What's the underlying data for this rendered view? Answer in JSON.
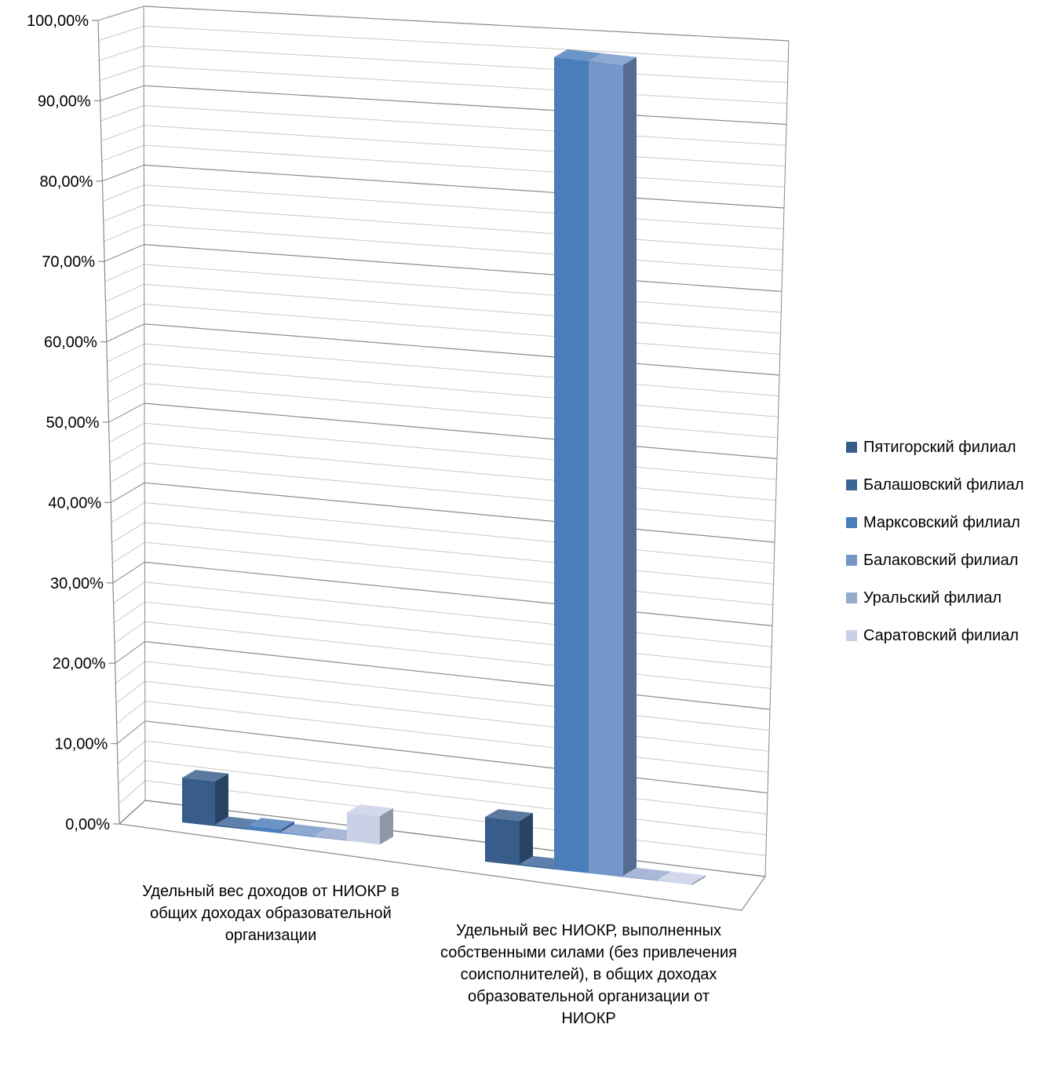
{
  "chart_data": {
    "type": "bar",
    "variant": "3d-clustered-column",
    "title": "",
    "xlabel": "",
    "ylabel": "",
    "ylim": [
      0,
      100
    ],
    "y_ticks": [
      "0,00%",
      "10,00%",
      "20,00%",
      "30,00%",
      "40,00%",
      "50,00%",
      "60,00%",
      "70,00%",
      "80,00%",
      "90,00%",
      "100,00%"
    ],
    "categories": [
      "Удельный вес доходов от НИОКР в общих доходах образовательной организации",
      "Удельный вес НИОКР, выполненных собственными силами (без привлечения соисполнителей), в общих доходах образовательной организации от НИОКР"
    ],
    "series": [
      {
        "name": "Пятигорский филиал",
        "color": "#385D8A",
        "values": [
          5.5,
          5.5
        ]
      },
      {
        "name": "Балашовский филиал",
        "color": "#3A6597",
        "values": [
          0.2,
          0.2
        ]
      },
      {
        "name": "Марксовский филиал",
        "color": "#4A7EBB",
        "values": [
          0.5,
          100
        ]
      },
      {
        "name": "Балаковский филиал",
        "color": "#7496C8",
        "values": [
          0.1,
          100
        ]
      },
      {
        "name": "Уральский филиал",
        "color": "#96A9CF",
        "values": [
          0.1,
          0
        ]
      },
      {
        "name": "Саратовский филиал",
        "color": "#C9D1E6",
        "values": [
          3.5,
          0
        ]
      }
    ],
    "legend_position": "right",
    "grid": true
  }
}
